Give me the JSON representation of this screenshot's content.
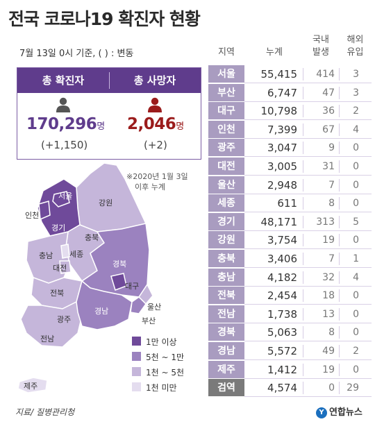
{
  "header": {
    "title": "전국 코로나19 확진자 현황",
    "basis": "7월 13일 0시 기준, ( ) : 변동"
  },
  "summary": {
    "confirmed": {
      "label": "총 확진자",
      "value": "170,296",
      "unit": "명",
      "change": "(+1,150)",
      "color": "#5f3c8c"
    },
    "deaths": {
      "label": "총 사망자",
      "value": "2,046",
      "unit": "명",
      "change": "(+2)",
      "color": "#9b1c1c"
    }
  },
  "map": {
    "note_line1": "※2020년 1월 3일",
    "note_line2": "이후 누계",
    "labels": {
      "seoul": "서울",
      "incheon": "인천",
      "gyeonggi": "경기",
      "gangwon": "강원",
      "chungbuk": "충북",
      "chungnam": "충남",
      "sejong": "세종",
      "daejeon": "대전",
      "gyeongbuk": "경북",
      "daegu": "대구",
      "jeonbuk": "전북",
      "gwangju": "광주",
      "jeonnam": "전남",
      "gyeongnam": "경남",
      "ulsan": "울산",
      "busan": "부산",
      "jeju": "제주"
    },
    "tier_colors": {
      "t4": "#6f4a9a",
      "t3": "#9b82bf",
      "t2": "#c5b6da",
      "t1": "#e4ddef"
    }
  },
  "legend": [
    {
      "label": "1만 이상",
      "color": "#6f4a9a"
    },
    {
      "label": "5천 ~ 1만",
      "color": "#9b82bf"
    },
    {
      "label": "1천 ~ 5천",
      "color": "#c5b6da"
    },
    {
      "label": "1천 미만",
      "color": "#e4ddef"
    }
  ],
  "footer": {
    "source": "지료/ 질병관리청",
    "logo_text": "연합뉴스",
    "logo_mark": "Y"
  },
  "table_head": {
    "region": "지역",
    "total": "누계",
    "domestic_1": "국내",
    "domestic_2": "발생",
    "imported_1": "해외",
    "imported_2": "유입"
  },
  "chart_data": {
    "type": "table",
    "columns": [
      "지역",
      "누계",
      "국내 발생",
      "해외 유입"
    ],
    "rows": [
      {
        "region": "서울",
        "total": "55,415",
        "domestic": "414",
        "imported": "3"
      },
      {
        "region": "부산",
        "total": "6,747",
        "domestic": "47",
        "imported": "3"
      },
      {
        "region": "대구",
        "total": "10,798",
        "domestic": "36",
        "imported": "2"
      },
      {
        "region": "인천",
        "total": "7,399",
        "domestic": "67",
        "imported": "4"
      },
      {
        "region": "광주",
        "total": "3,047",
        "domestic": "9",
        "imported": "0"
      },
      {
        "region": "대전",
        "total": "3,005",
        "domestic": "31",
        "imported": "0"
      },
      {
        "region": "울산",
        "total": "2,948",
        "domestic": "7",
        "imported": "0"
      },
      {
        "region": "세종",
        "total": "611",
        "domestic": "8",
        "imported": "0"
      },
      {
        "region": "경기",
        "total": "48,171",
        "domestic": "313",
        "imported": "5"
      },
      {
        "region": "강원",
        "total": "3,754",
        "domestic": "19",
        "imported": "0"
      },
      {
        "region": "충북",
        "total": "3,406",
        "domestic": "7",
        "imported": "1"
      },
      {
        "region": "충남",
        "total": "4,182",
        "domestic": "32",
        "imported": "4"
      },
      {
        "region": "전북",
        "total": "2,454",
        "domestic": "18",
        "imported": "0"
      },
      {
        "region": "전남",
        "total": "1,738",
        "domestic": "13",
        "imported": "0"
      },
      {
        "region": "경북",
        "total": "5,063",
        "domestic": "8",
        "imported": "0"
      },
      {
        "region": "경남",
        "total": "5,572",
        "domestic": "49",
        "imported": "2"
      },
      {
        "region": "제주",
        "total": "1,412",
        "domestic": "19",
        "imported": "0"
      },
      {
        "region": "검역",
        "total": "4,574",
        "domestic": "0",
        "imported": "29"
      }
    ],
    "region_cell_color": "#a99cc0",
    "quarantine_cell_color": "#7a7a7a"
  }
}
